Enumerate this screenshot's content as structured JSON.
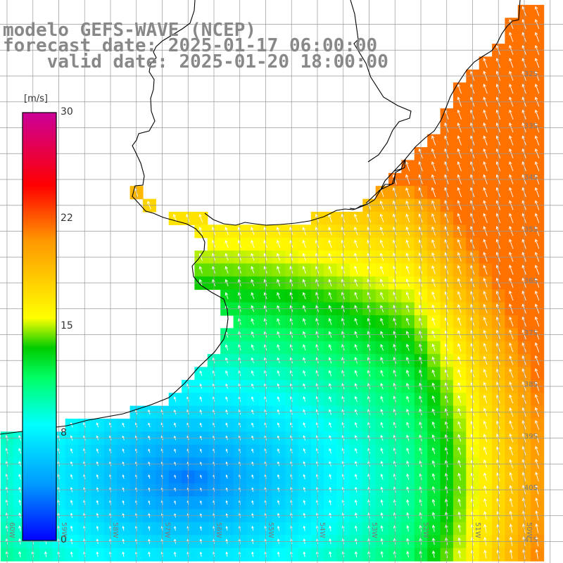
{
  "title": {
    "model": "modelo GEFS-WAVE (NCEP)",
    "forecast": "forecast date: 2025-01-17 06:00:00",
    "valid": "    valid date: 2025-01-20 18:00:00"
  },
  "colorbar": {
    "unit": "[m/s]",
    "ticks": [
      "30",
      "22",
      "15",
      "8",
      "0"
    ],
    "colors": [
      "#0000ff",
      "#0099ff",
      "#00ffff",
      "#00ff66",
      "#00cc00",
      "#ffff00",
      "#ff9900",
      "#ff0000",
      "#cc0099"
    ]
  },
  "axes": {
    "lat_labels": [
      "32S",
      "33S",
      "34S",
      "35S",
      "36S",
      "37S",
      "38S",
      "39S",
      "40S",
      "41S"
    ],
    "lon_labels": [
      "60W",
      "59W",
      "58W",
      "57W",
      "56W",
      "55W",
      "54W",
      "53W",
      "52W",
      "51W",
      "50W"
    ]
  },
  "field": {
    "variable": "wind speed",
    "unit": "m/s",
    "vmin": 0,
    "vmax": 30,
    "grid_step_deg": 0.25,
    "lon_range": [
      -60.25,
      -49.75
    ],
    "lat_range": [
      -41.5,
      -30.25
    ],
    "arrow_stride": 1
  },
  "colors": {
    "land": "#ffffff",
    "coast": "#000000",
    "grid": "#999999",
    "title": "#888888",
    "arrow": "#ffffff"
  }
}
